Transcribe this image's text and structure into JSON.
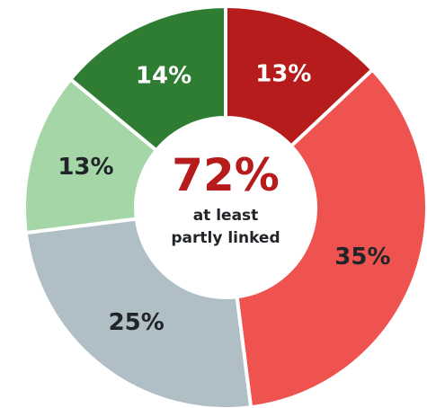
{
  "chart_data": {
    "type": "pie",
    "donut": true,
    "start_angle_deg": 0,
    "direction": "clockwise",
    "slices": [
      {
        "label": "13%",
        "value": 13,
        "color": "#b71c1c",
        "label_color": "#ffffff"
      },
      {
        "label": "35%",
        "value": 35,
        "color": "#ef5350",
        "label_color": "#212529"
      },
      {
        "label": "25%",
        "value": 25,
        "color": "#b0bec5",
        "label_color": "#212529"
      },
      {
        "label": "13%",
        "value": 13,
        "color": "#a5d6a7",
        "label_color": "#212529"
      },
      {
        "label": "14%",
        "value": 14,
        "color": "#2e7d32",
        "label_color": "#ffffff"
      }
    ],
    "center": {
      "value": "72%",
      "value_color": "#b71c1c",
      "caption_lines": [
        "at least",
        "partly linked"
      ],
      "caption_color": "#212529"
    }
  }
}
